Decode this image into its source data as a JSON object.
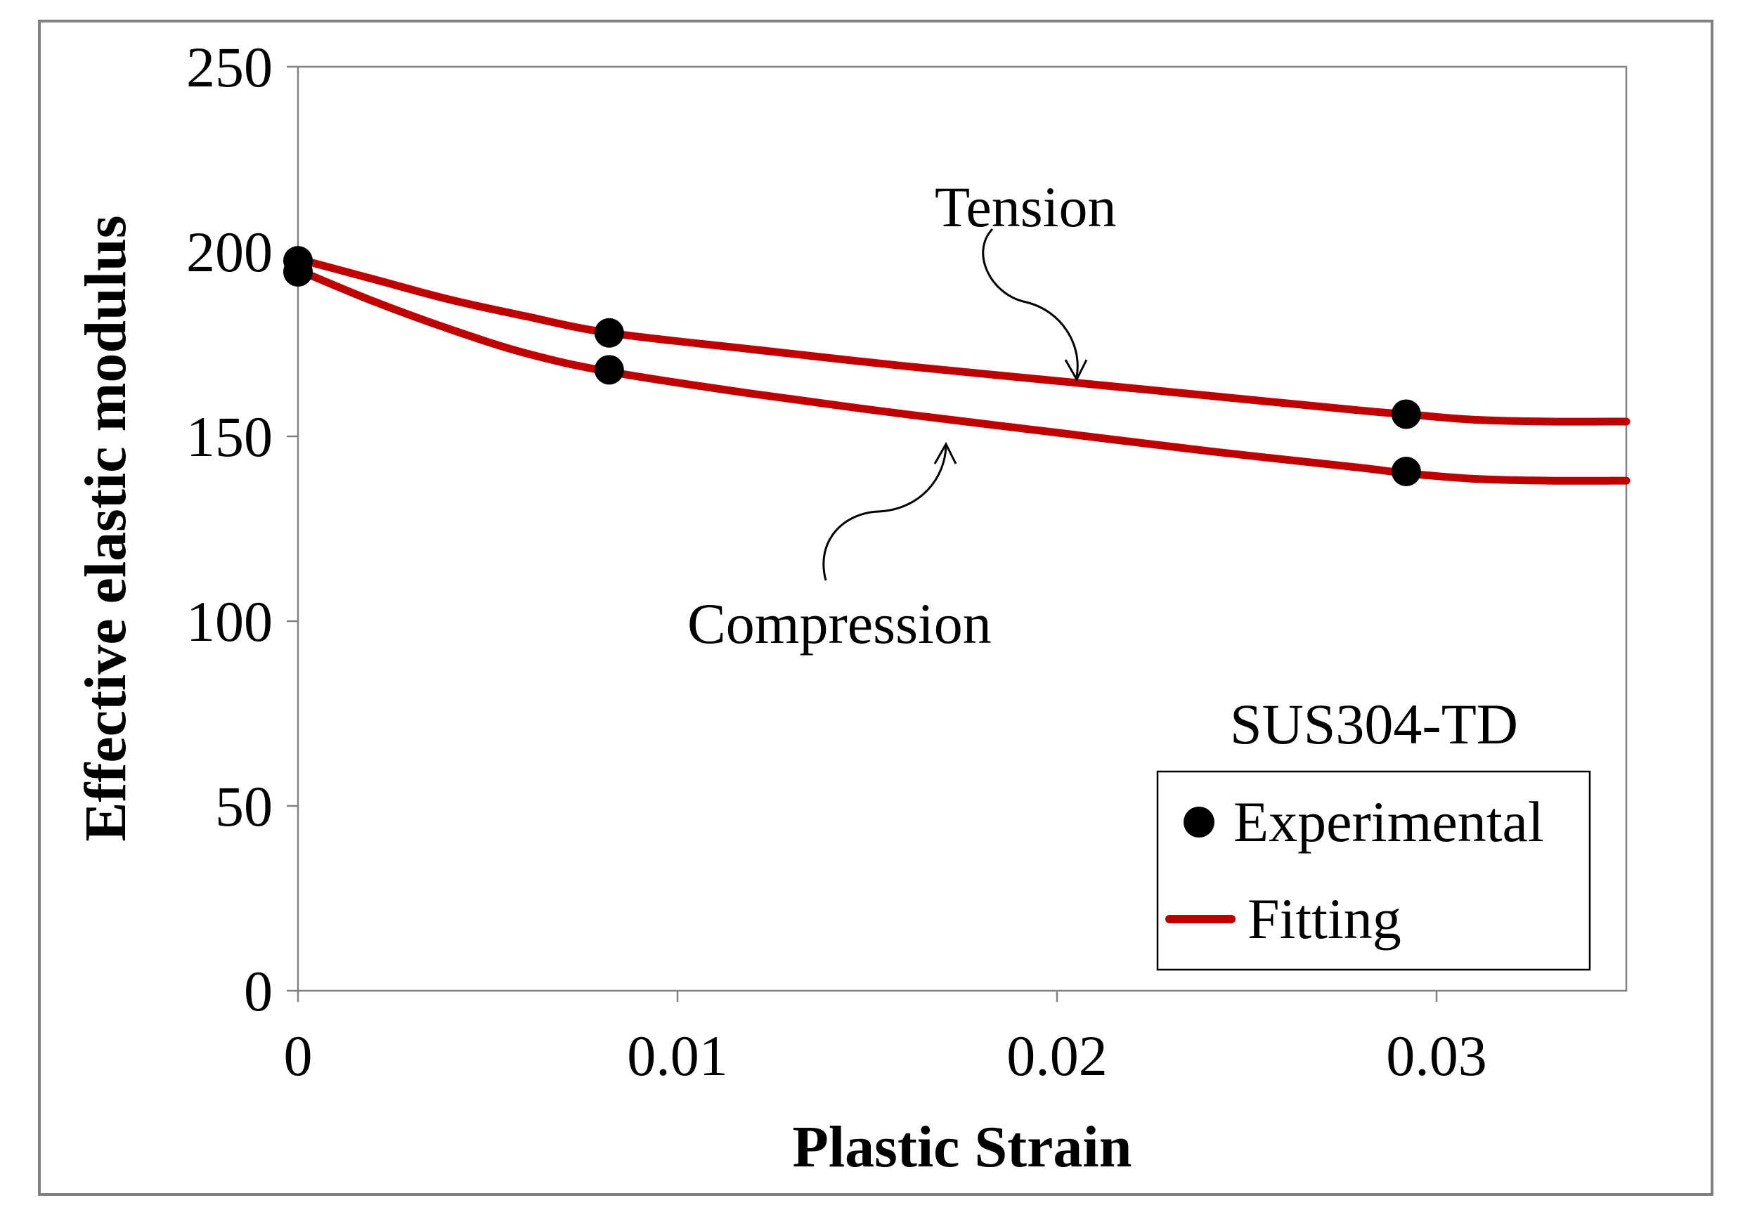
{
  "chart_data": {
    "type": "line",
    "title": "",
    "xlabel": "Plastic Strain",
    "ylabel": "Effective elastic modulus",
    "xlim": [
      0,
      0.035
    ],
    "ylim": [
      0,
      250
    ],
    "xticks": [
      0,
      0.01,
      0.02,
      0.03
    ],
    "xtick_labels": [
      "0",
      "0.01",
      "0.02",
      "0.03"
    ],
    "yticks": [
      0,
      50,
      100,
      150,
      200,
      250
    ],
    "ytick_labels": [
      "0",
      "50",
      "100",
      "150",
      "200",
      "250"
    ],
    "grid": false,
    "legend": {
      "location": "bottom-right",
      "entries": [
        {
          "label": "Experimental",
          "marker": "circle"
        },
        {
          "label": "Fitting",
          "marker": "line"
        }
      ]
    },
    "series": [
      {
        "name": "Tension Experimental",
        "kind": "scatter",
        "x": [
          0,
          0.0082,
          0.0292
        ],
        "y": [
          197.5,
          178,
          156
        ]
      },
      {
        "name": "Compression Experimental",
        "kind": "scatter",
        "x": [
          0,
          0.0082,
          0.0292
        ],
        "y": [
          194.5,
          168,
          140.5
        ]
      },
      {
        "name": "Tension Fitting",
        "kind": "line",
        "x": [
          0,
          0.002,
          0.004,
          0.006,
          0.0082,
          0.012,
          0.016,
          0.02,
          0.024,
          0.028,
          0.0292,
          0.031,
          0.033,
          0.035
        ],
        "y": [
          198,
          192.5,
          187,
          182.5,
          178,
          173.5,
          169,
          165,
          161,
          157,
          156,
          154.5,
          154,
          154
        ]
      },
      {
        "name": "Compression Fitting",
        "kind": "line",
        "x": [
          0,
          0.002,
          0.004,
          0.006,
          0.0082,
          0.012,
          0.016,
          0.02,
          0.024,
          0.028,
          0.0292,
          0.031,
          0.033,
          0.035
        ],
        "y": [
          195,
          186.5,
          179,
          172.5,
          167.5,
          161.5,
          156,
          151,
          146,
          141.5,
          140,
          138.5,
          138,
          138
        ]
      }
    ],
    "annotations": [
      {
        "text": "Tension",
        "points_to": "Tension Fitting"
      },
      {
        "text": "Compression",
        "points_to": "Compression Fitting"
      },
      {
        "text": "SUS304-TD"
      }
    ]
  },
  "colors": {
    "fit_line": "#c00000",
    "marker": "#000000",
    "axis": "#808080",
    "frame": "#808080"
  }
}
